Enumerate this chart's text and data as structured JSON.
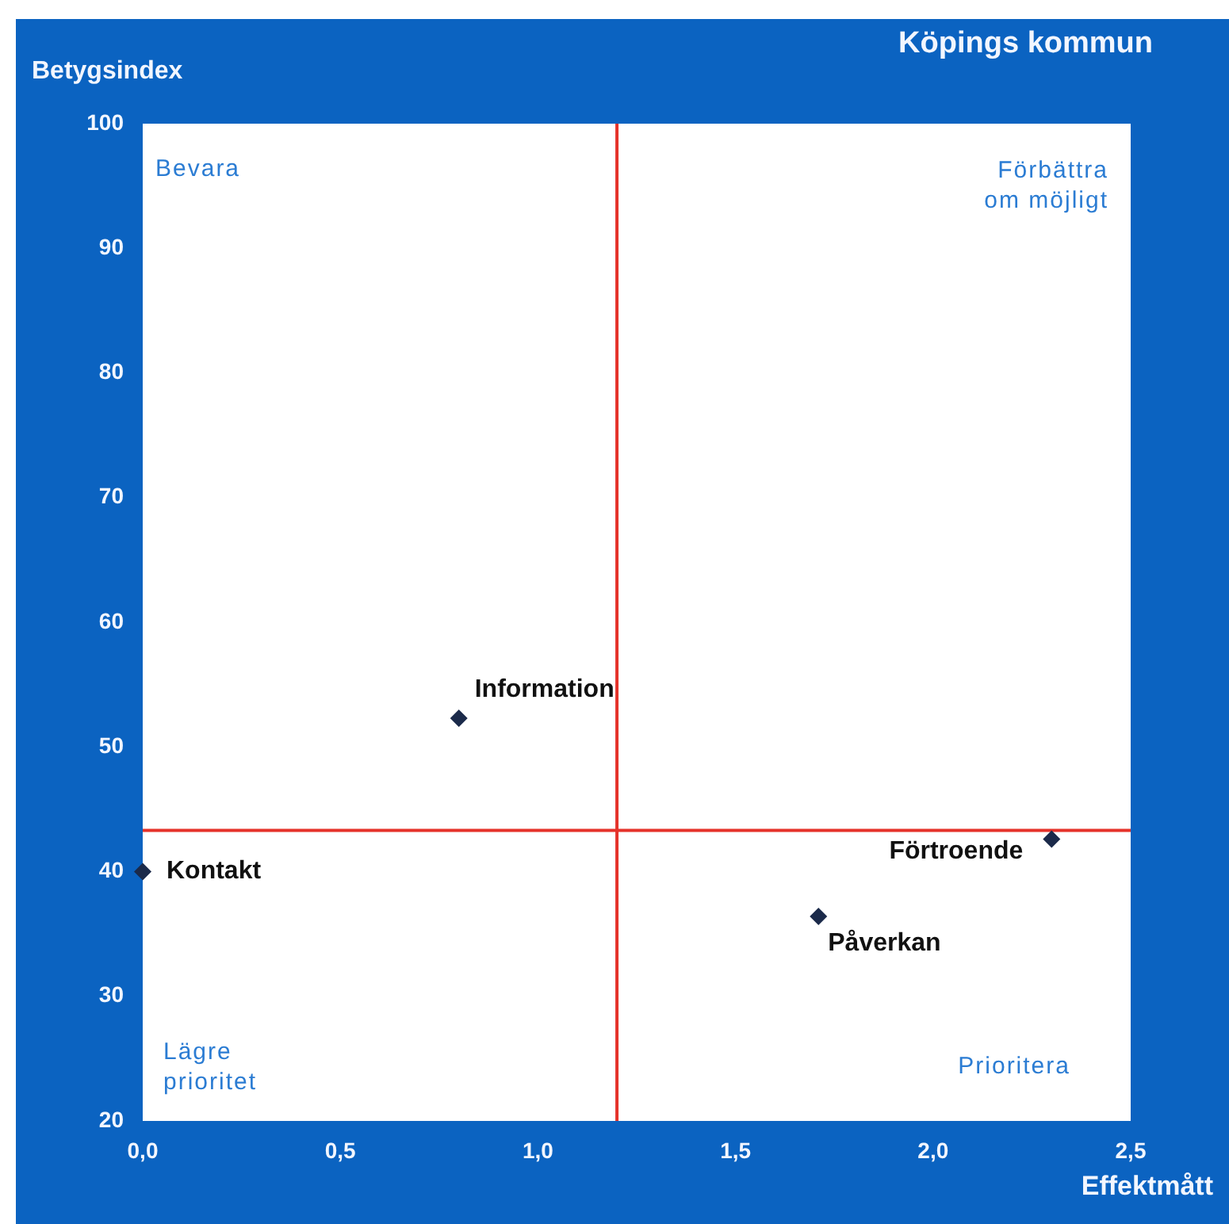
{
  "chart_data": {
    "type": "scatter",
    "title": "Köpings kommun",
    "xlabel": "Effektmått",
    "ylabel": "Betygsindex",
    "x": [
      0.8,
      0.0,
      2.3,
      1.71
    ],
    "series": [
      {
        "color": "#1b2a4a",
        "values": [
          52.3,
          40.0,
          42.6,
          36.4
        ]
      }
    ],
    "marker": "diamond",
    "xlim": [
      0,
      2.5
    ],
    "xticks": [
      {
        "value": 0,
        "label": "0,0"
      },
      {
        "value": 0.5,
        "label": "0,5"
      },
      {
        "value": 1,
        "label": "1,0"
      },
      {
        "value": 1.5,
        "label": "1,5"
      },
      {
        "value": 2,
        "label": "2,0"
      },
      {
        "value": 2.5,
        "label": "2,5"
      }
    ],
    "ylim": [
      20,
      100
    ],
    "yticks": [
      20,
      30,
      40,
      50,
      60,
      70,
      80,
      90,
      100
    ],
    "ref_lines": [
      {
        "axis": "x",
        "value": 1.2,
        "color": "#e5322a"
      },
      {
        "axis": "y",
        "value": 43.3,
        "color": "#e5322a"
      }
    ],
    "annotations": [
      {
        "text": "Information",
        "x": 0.8,
        "y": 52.3
      },
      {
        "text": "Kontakt",
        "x": 0.0,
        "y": 40.0
      },
      {
        "text": "Förtroende",
        "x": 2.3,
        "y": 42.6
      },
      {
        "text": "Påverkan",
        "x": 1.71,
        "y": 36.4
      },
      "Bevara",
      "Förbättra\nom möjligt",
      "Lägre\nprioritet",
      "Prioritera"
    ]
  }
}
